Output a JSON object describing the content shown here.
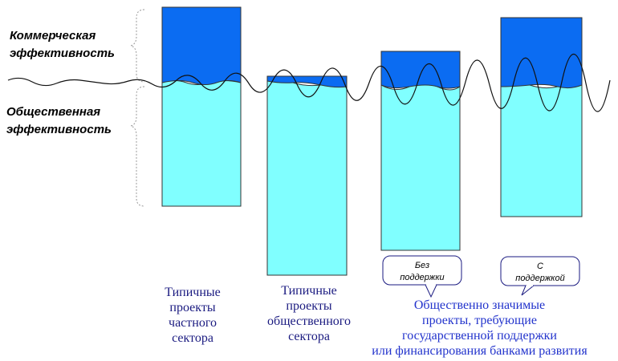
{
  "labels": {
    "commercial": [
      "Коммерческая",
      "эффективность"
    ],
    "social": [
      "Общественная",
      "эффективность"
    ]
  },
  "bars": [
    {
      "id": "private"
    },
    {
      "id": "public"
    },
    {
      "id": "no-support",
      "callout": [
        "Без",
        "поддержки"
      ]
    },
    {
      "id": "with-support",
      "callout": [
        "С",
        "поддержкой"
      ]
    }
  ],
  "captions": {
    "private": [
      "Типичные",
      "проекты",
      "частного",
      "сектора"
    ],
    "public": [
      "Типичные",
      "проекты",
      "общественного",
      "сектора"
    ],
    "significant": [
      "Общественно значимые",
      "проекты, требующие",
      "государственной поддержки",
      "или финансирования банками развития"
    ]
  },
  "colors": {
    "commercial": "#0b6cf2",
    "social": "#80ffff",
    "outline": "#333333",
    "caption": "#1a1a80",
    "caption_alt": "#2233cc"
  }
}
